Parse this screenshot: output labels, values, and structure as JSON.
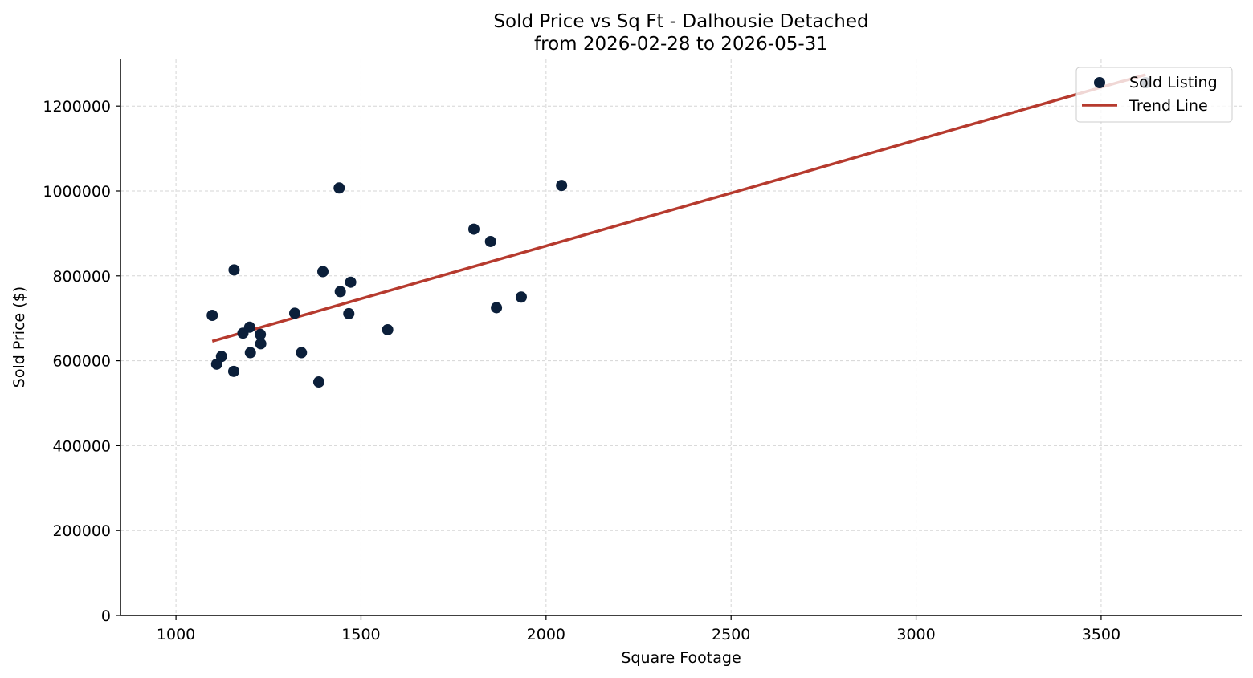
{
  "chart_data": {
    "type": "scatter",
    "title": "Sold Price vs Sq Ft - Dalhousie Detached",
    "subtitle": "from 2026-02-28 to 2026-05-31",
    "xlabel": "Square Footage",
    "ylabel": "Sold Price ($)",
    "xlim": [
      850,
      3880
    ],
    "ylim": [
      0,
      1310000
    ],
    "x_ticks": [
      1000,
      1500,
      2000,
      2500,
      3000,
      3500
    ],
    "y_ticks": [
      0,
      200000,
      400000,
      600000,
      800000,
      1000000,
      1200000
    ],
    "grid": true,
    "legend_position": "top-right",
    "colors": {
      "points": "#0b1f3a",
      "trend": "#b63a2e",
      "grid": "#d5d5d5"
    },
    "series": [
      {
        "name": "Sold Listing",
        "kind": "scatter",
        "points": [
          {
            "x": 1098,
            "y": 707000
          },
          {
            "x": 1110,
            "y": 592000
          },
          {
            "x": 1123,
            "y": 610000
          },
          {
            "x": 1156,
            "y": 575000
          },
          {
            "x": 1157,
            "y": 814000
          },
          {
            "x": 1181,
            "y": 665000
          },
          {
            "x": 1199,
            "y": 679000
          },
          {
            "x": 1201,
            "y": 619000
          },
          {
            "x": 1228,
            "y": 662000
          },
          {
            "x": 1229,
            "y": 640000
          },
          {
            "x": 1321,
            "y": 712000
          },
          {
            "x": 1339,
            "y": 619000
          },
          {
            "x": 1386,
            "y": 550000
          },
          {
            "x": 1397,
            "y": 810000
          },
          {
            "x": 1441,
            "y": 1007000
          },
          {
            "x": 1444,
            "y": 763000
          },
          {
            "x": 1467,
            "y": 711000
          },
          {
            "x": 1472,
            "y": 785000
          },
          {
            "x": 1572,
            "y": 673000
          },
          {
            "x": 1805,
            "y": 910000
          },
          {
            "x": 1850,
            "y": 881000
          },
          {
            "x": 1866,
            "y": 725000
          },
          {
            "x": 1933,
            "y": 750000
          },
          {
            "x": 2042,
            "y": 1013000
          },
          {
            "x": 3620,
            "y": 1255000
          }
        ]
      },
      {
        "name": "Trend Line",
        "kind": "line",
        "points": [
          {
            "x": 1098,
            "y": 646000
          },
          {
            "x": 3620,
            "y": 1274000
          }
        ]
      }
    ]
  }
}
